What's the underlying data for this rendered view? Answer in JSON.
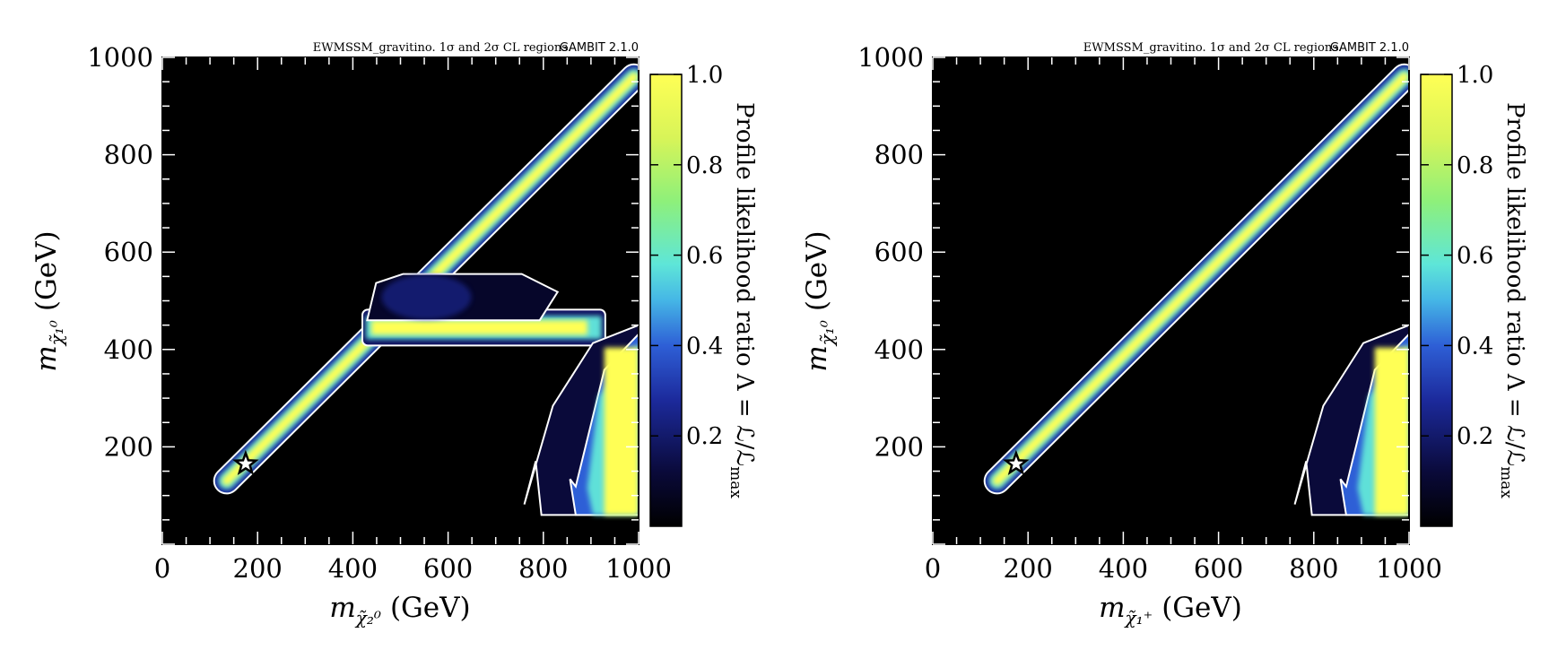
{
  "figure": {
    "panels": [
      {
        "title": "EWMSSM_gravitino. 1σ and 2σ CL regions.",
        "title_tag": "GAMBIT 2.1.0",
        "xlabel_var": "m",
        "xlabel_sub": "χ̃₂⁰",
        "xlabel_unit": "(GeV)",
        "ylabel_var": "m",
        "ylabel_sub": "χ̃₁⁰",
        "ylabel_unit": "(GeV)",
        "x_ticks": [
          "0",
          "200",
          "400",
          "600",
          "800",
          "1000"
        ],
        "y_ticks": [
          "200",
          "400",
          "600",
          "800",
          "1000"
        ]
      },
      {
        "title": "EWMSSM_gravitino. 1σ and 2σ CL regions.",
        "title_tag": "GAMBIT 2.1.0",
        "xlabel_var": "m",
        "xlabel_sub": "χ̃₁⁺",
        "xlabel_unit": "(GeV)",
        "ylabel_var": "m",
        "ylabel_sub": "χ̃₁⁰",
        "ylabel_unit": "(GeV)",
        "x_ticks": [
          "0",
          "200",
          "400",
          "600",
          "800",
          "1000"
        ],
        "y_ticks": [
          "200",
          "400",
          "600",
          "800",
          "1000"
        ]
      }
    ],
    "colorbar": {
      "label": "Profile likelihood ratio Λ = ℒ/ℒ",
      "label_sub": "max",
      "ticks": [
        "0.2",
        "0.4",
        "0.6",
        "0.8",
        "1.0"
      ]
    }
  },
  "chart_data": [
    {
      "type": "heatmap",
      "title": "EWMSSM_gravitino. 1σ and 2σ CL regions. GAMBIT 2.1.0",
      "xlabel": "m_χ̃2^0 (GeV)",
      "ylabel": "m_χ̃1^0 (GeV)",
      "xlim": [
        0,
        1000
      ],
      "ylim": [
        0,
        1000
      ],
      "colorbar_range": [
        0,
        1
      ],
      "best_fit_point": {
        "x": 175,
        "y": 165
      },
      "regions": [
        {
          "name": "diagonal band",
          "from": [
            135,
            130
          ],
          "to": [
            990,
            960
          ],
          "peak_likelihood": 1.0
        },
        {
          "name": "horizontal band",
          "x_range": [
            420,
            930
          ],
          "y_center": 445,
          "peak_likelihood": 1.0
        },
        {
          "name": "dark region above band",
          "x_range": [
            430,
            830
          ],
          "y_range": [
            460,
            555
          ],
          "peak_likelihood": 0.1
        },
        {
          "name": "lower right region",
          "x_range": [
            760,
            1000
          ],
          "y_range": [
            60,
            450
          ],
          "peak_likelihood": 1.0
        }
      ]
    },
    {
      "type": "heatmap",
      "title": "EWMSSM_gravitino. 1σ and 2σ CL regions. GAMBIT 2.1.0",
      "xlabel": "m_χ̃1^+ (GeV)",
      "ylabel": "m_χ̃1^0 (GeV)",
      "xlim": [
        0,
        1000
      ],
      "ylim": [
        0,
        1000
      ],
      "colorbar_range": [
        0,
        1
      ],
      "best_fit_point": {
        "x": 175,
        "y": 165
      },
      "regions": [
        {
          "name": "diagonal band",
          "from": [
            135,
            130
          ],
          "to": [
            990,
            960
          ],
          "peak_likelihood": 1.0
        },
        {
          "name": "lower right region",
          "x_range": [
            760,
            1000
          ],
          "y_range": [
            60,
            450
          ],
          "peak_likelihood": 1.0
        }
      ]
    }
  ]
}
